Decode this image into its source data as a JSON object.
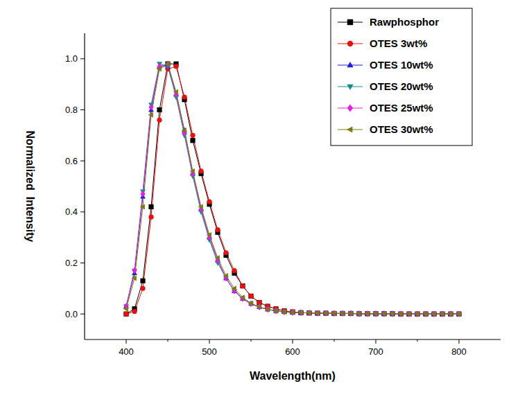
{
  "chart_data": {
    "type": "line",
    "x_label": "Wavelength(nm)",
    "y_label": "Normalized  Intensity",
    "x": [
      400,
      410,
      420,
      430,
      440,
      450,
      460,
      470,
      480,
      490,
      500,
      510,
      520,
      530,
      540,
      550,
      560,
      570,
      580,
      590,
      600,
      610,
      620,
      630,
      640,
      650,
      660,
      670,
      680,
      690,
      700,
      710,
      720,
      730,
      740,
      750,
      760,
      770,
      780,
      790,
      800
    ],
    "series": [
      {
        "name": "Rawphosphor",
        "color": "#000000",
        "marker": "square",
        "values": [
          0,
          0.02,
          0.13,
          0.42,
          0.8,
          0.98,
          0.98,
          0.84,
          0.68,
          0.55,
          0.43,
          0.32,
          0.23,
          0.16,
          0.11,
          0.07,
          0.045,
          0.03,
          0.02,
          0.012,
          0.008,
          0.005,
          0.004,
          0.003,
          0.003,
          0.002,
          0.002,
          0.002,
          0.001,
          0.001,
          0.001,
          0.001,
          0.001,
          0,
          0,
          0,
          0,
          0,
          0,
          0,
          0
        ]
      },
      {
        "name": "OTES 3wt%",
        "color": "#e8100f",
        "marker": "circle",
        "values": [
          0,
          0.01,
          0.1,
          0.38,
          0.76,
          0.96,
          0.97,
          0.85,
          0.7,
          0.56,
          0.44,
          0.33,
          0.24,
          0.17,
          0.11,
          0.07,
          0.045,
          0.03,
          0.02,
          0.012,
          0.008,
          0.005,
          0.004,
          0.003,
          0.003,
          0.002,
          0.002,
          0.002,
          0.001,
          0.001,
          0.001,
          0.001,
          0.001,
          0,
          0,
          0,
          0,
          0,
          0,
          0,
          0
        ]
      },
      {
        "name": "OTES 10wt%",
        "color": "#1f1fcf",
        "marker": "triangle-up",
        "values": [
          0.03,
          0.16,
          0.46,
          0.8,
          0.97,
          0.97,
          0.86,
          0.72,
          0.55,
          0.41,
          0.3,
          0.21,
          0.14,
          0.09,
          0.06,
          0.04,
          0.027,
          0.018,
          0.012,
          0.008,
          0.006,
          0.005,
          0.004,
          0.003,
          0.003,
          0.002,
          0.002,
          0.002,
          0.001,
          0.001,
          0.001,
          0.001,
          0.001,
          0,
          0,
          0,
          0,
          0,
          0,
          0,
          0
        ]
      },
      {
        "name": "OTES 20wt%",
        "color": "#1a8a8a",
        "marker": "triangle-down",
        "values": [
          0.03,
          0.17,
          0.48,
          0.82,
          0.98,
          0.97,
          0.85,
          0.7,
          0.54,
          0.4,
          0.29,
          0.2,
          0.14,
          0.09,
          0.06,
          0.04,
          0.027,
          0.018,
          0.012,
          0.008,
          0.006,
          0.005,
          0.004,
          0.003,
          0.003,
          0.002,
          0.002,
          0.002,
          0.001,
          0.001,
          0.001,
          0.001,
          0.001,
          0,
          0,
          0,
          0,
          0,
          0,
          0,
          0
        ]
      },
      {
        "name": "OTES 25wt%",
        "color": "#e020e0",
        "marker": "diamond",
        "values": [
          0.03,
          0.17,
          0.47,
          0.81,
          0.97,
          0.98,
          0.86,
          0.71,
          0.55,
          0.41,
          0.3,
          0.21,
          0.14,
          0.09,
          0.06,
          0.04,
          0.027,
          0.018,
          0.012,
          0.008,
          0.006,
          0.005,
          0.004,
          0.003,
          0.003,
          0.002,
          0.002,
          0.002,
          0.001,
          0.001,
          0.001,
          0.001,
          0.001,
          0,
          0,
          0,
          0,
          0,
          0,
          0,
          0
        ]
      },
      {
        "name": "OTES 30wt%",
        "color": "#7a7a10",
        "marker": "triangle-left",
        "values": [
          0.02,
          0.14,
          0.42,
          0.78,
          0.96,
          0.98,
          0.87,
          0.72,
          0.56,
          0.42,
          0.31,
          0.22,
          0.15,
          0.1,
          0.065,
          0.042,
          0.028,
          0.018,
          0.012,
          0.008,
          0.006,
          0.005,
          0.004,
          0.003,
          0.003,
          0.002,
          0.002,
          0.002,
          0.001,
          0.001,
          0.001,
          0.001,
          0.001,
          0,
          0,
          0,
          0,
          0,
          0,
          0,
          0
        ]
      }
    ],
    "xlim": [
      350,
      850
    ],
    "xticks": [
      400,
      500,
      600,
      700,
      800
    ],
    "ylim": [
      -0.1,
      1.1
    ],
    "yticks": [
      {
        "value": 0,
        "label": "0.0"
      },
      0.2,
      0.4,
      0.6,
      0.8,
      {
        "value": 1,
        "label": "1.0"
      }
    ],
    "legend": "upper right",
    "grid": false
  }
}
